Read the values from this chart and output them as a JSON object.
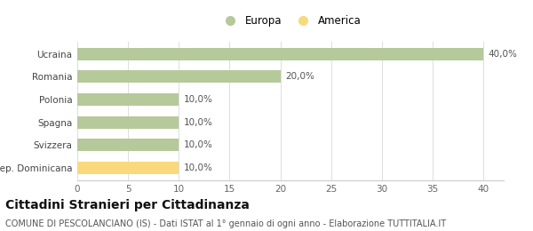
{
  "categories": [
    "Rep. Dominicana",
    "Svizzera",
    "Spagna",
    "Polonia",
    "Romania",
    "Ucraina"
  ],
  "values": [
    10.0,
    10.0,
    10.0,
    10.0,
    20.0,
    40.0
  ],
  "colors": [
    "#f9d97c",
    "#b5c99a",
    "#b5c99a",
    "#b5c99a",
    "#b5c99a",
    "#b5c99a"
  ],
  "legend": [
    {
      "label": "Europa",
      "color": "#b5c99a"
    },
    {
      "label": "America",
      "color": "#f9d97c"
    }
  ],
  "xlim": [
    0,
    42
  ],
  "xticks": [
    0,
    5,
    10,
    15,
    20,
    25,
    30,
    35,
    40
  ],
  "title": "Cittadini Stranieri per Cittadinanza",
  "subtitle": "COMUNE DI PESCOLANCIANO (IS) - Dati ISTAT al 1° gennaio di ogni anno - Elaborazione TUTTITALIA.IT",
  "title_fontsize": 10,
  "subtitle_fontsize": 7,
  "bar_label_fontsize": 7.5,
  "tick_fontsize": 7.5,
  "legend_fontsize": 8.5,
  "bar_labels": [
    "10,0%",
    "10,0%",
    "10,0%",
    "10,0%",
    "20,0%",
    "40,0%"
  ],
  "background_color": "#ffffff",
  "grid_color": "#dddddd"
}
